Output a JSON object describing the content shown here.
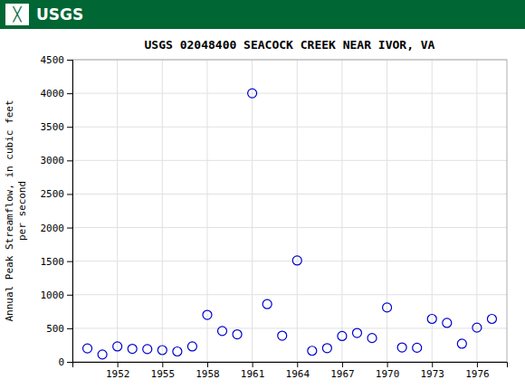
{
  "chart_data": {
    "type": "scatter",
    "title": "USGS 02048400 SEACOCK CREEK NEAR IVOR, VA",
    "ylabel": "Annual Peak Streamflow, in cubic feet\nper second",
    "annotations": [
      "╳",
      "USGS"
    ],
    "x": [
      1950,
      1951,
      1952,
      1953,
      1954,
      1955,
      1956,
      1957,
      1958,
      1959,
      1960,
      1961,
      1962,
      1963,
      1964,
      1965,
      1966,
      1967,
      1968,
      1969,
      1970,
      1971,
      1972,
      1973,
      1974,
      1975,
      1976,
      1977
    ],
    "values": [
      200,
      110,
      230,
      195,
      190,
      175,
      155,
      230,
      700,
      460,
      410,
      4000,
      860,
      390,
      1510,
      165,
      205,
      385,
      430,
      355,
      810,
      215,
      210,
      640,
      580,
      270,
      510,
      640
    ],
    "color": "#0000cc",
    "marker": "open-circle",
    "xlim": [
      1949,
      1978
    ],
    "xticks": [
      1952,
      1955,
      1958,
      1961,
      1964,
      1967,
      1970,
      1973,
      1976
    ],
    "ylim": [
      0,
      4500
    ],
    "yticks": [
      0,
      500,
      1000,
      1500,
      2000,
      2500,
      3000,
      3500,
      4000,
      4500
    ],
    "grid": true
  }
}
